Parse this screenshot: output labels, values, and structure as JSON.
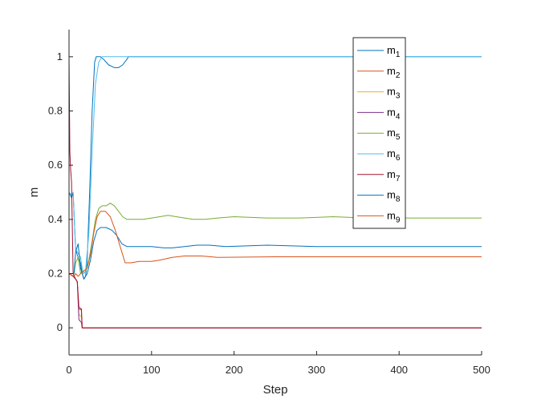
{
  "chart_data": {
    "type": "line",
    "xlabel": "Step",
    "ylabel": "m",
    "xlim": [
      0,
      500
    ],
    "ylim": [
      -0.1,
      1.1
    ],
    "xticks": [
      "0",
      "100",
      "200",
      "300",
      "400",
      "500"
    ],
    "yticks": [
      "0",
      "0.2",
      "0.4",
      "0.6",
      "0.8",
      "1"
    ],
    "grid": false,
    "legend_position": "top-right",
    "series": [
      {
        "name": "m",
        "sub": "1",
        "color": "#0072BD",
        "points": [
          [
            0,
            0.5
          ],
          [
            3,
            0.48
          ],
          [
            5,
            0.5
          ],
          [
            8,
            0.29
          ],
          [
            12,
            0.25
          ],
          [
            14,
            0.24
          ],
          [
            16,
            0.2
          ],
          [
            18,
            0.18
          ],
          [
            20,
            0.19
          ],
          [
            22,
            0.25
          ],
          [
            25,
            0.5
          ],
          [
            28,
            0.8
          ],
          [
            31,
            0.98
          ],
          [
            33,
            1.0
          ],
          [
            38,
            1.0
          ],
          [
            42,
            0.99
          ],
          [
            48,
            0.97
          ],
          [
            55,
            0.96
          ],
          [
            60,
            0.96
          ],
          [
            65,
            0.97
          ],
          [
            70,
            0.99
          ],
          [
            72,
            1.0
          ],
          [
            100,
            1.0
          ],
          [
            200,
            1.0
          ],
          [
            300,
            1.0
          ],
          [
            400,
            1.0
          ],
          [
            500,
            1.0
          ]
        ]
      },
      {
        "name": "m",
        "sub": "2",
        "color": "#D95319",
        "points": [
          [
            0,
            0.2
          ],
          [
            5,
            0.19
          ],
          [
            8,
            0.18
          ],
          [
            10,
            0.17
          ],
          [
            12,
            0.07
          ],
          [
            15,
            0.065
          ],
          [
            16,
            0.0
          ],
          [
            20,
            0.0
          ],
          [
            100,
            0.0
          ],
          [
            200,
            0.0
          ],
          [
            300,
            0.0
          ],
          [
            400,
            0.0
          ],
          [
            500,
            0.0
          ]
        ]
      },
      {
        "name": "m",
        "sub": "3",
        "color": "#EDB120",
        "points": [
          [
            0,
            0.2
          ],
          [
            5,
            0.19
          ],
          [
            8,
            0.18
          ],
          [
            10,
            0.17
          ],
          [
            12,
            0.05
          ],
          [
            15,
            0.04
          ],
          [
            16,
            0.0
          ],
          [
            20,
            0.0
          ],
          [
            100,
            0.0
          ],
          [
            200,
            0.0
          ],
          [
            300,
            0.0
          ],
          [
            400,
            0.0
          ],
          [
            500,
            0.0
          ]
        ]
      },
      {
        "name": "m",
        "sub": "4",
        "color": "#7E2F8E",
        "points": [
          [
            0,
            0.2
          ],
          [
            5,
            0.19
          ],
          [
            8,
            0.18
          ],
          [
            10,
            0.17
          ],
          [
            12,
            0.03
          ],
          [
            15,
            0.02
          ],
          [
            16,
            0.0
          ],
          [
            20,
            0.0
          ],
          [
            100,
            0.0
          ],
          [
            200,
            0.0
          ],
          [
            300,
            0.0
          ],
          [
            400,
            0.0
          ],
          [
            500,
            0.0
          ]
        ]
      },
      {
        "name": "m",
        "sub": "5",
        "color": "#77AC30",
        "points": [
          [
            0,
            0.2
          ],
          [
            6,
            0.2
          ],
          [
            8,
            0.24
          ],
          [
            11,
            0.26
          ],
          [
            14,
            0.2
          ],
          [
            16,
            0.21
          ],
          [
            18,
            0.2
          ],
          [
            20,
            0.21
          ],
          [
            24,
            0.25
          ],
          [
            28,
            0.32
          ],
          [
            32,
            0.4
          ],
          [
            36,
            0.44
          ],
          [
            40,
            0.45
          ],
          [
            45,
            0.45
          ],
          [
            50,
            0.46
          ],
          [
            55,
            0.45
          ],
          [
            60,
            0.43
          ],
          [
            65,
            0.41
          ],
          [
            70,
            0.4
          ],
          [
            80,
            0.4
          ],
          [
            90,
            0.4
          ],
          [
            100,
            0.405
          ],
          [
            110,
            0.41
          ],
          [
            120,
            0.415
          ],
          [
            130,
            0.41
          ],
          [
            140,
            0.405
          ],
          [
            150,
            0.4
          ],
          [
            165,
            0.4
          ],
          [
            180,
            0.405
          ],
          [
            200,
            0.41
          ],
          [
            240,
            0.405
          ],
          [
            280,
            0.405
          ],
          [
            320,
            0.41
          ],
          [
            360,
            0.405
          ],
          [
            400,
            0.405
          ],
          [
            450,
            0.405
          ],
          [
            500,
            0.405
          ]
        ]
      },
      {
        "name": "m",
        "sub": "6",
        "color": "#4DBEEE",
        "points": [
          [
            0,
            0.5
          ],
          [
            3,
            0.49
          ],
          [
            5,
            0.5
          ],
          [
            8,
            0.29
          ],
          [
            12,
            0.27
          ],
          [
            14,
            0.26
          ],
          [
            16,
            0.22
          ],
          [
            18,
            0.2
          ],
          [
            20,
            0.21
          ],
          [
            24,
            0.35
          ],
          [
            28,
            0.65
          ],
          [
            32,
            0.9
          ],
          [
            36,
            0.98
          ],
          [
            40,
            1.0
          ],
          [
            100,
            1.0
          ],
          [
            200,
            1.0
          ],
          [
            300,
            1.0
          ],
          [
            400,
            1.0
          ],
          [
            500,
            1.0
          ]
        ]
      },
      {
        "name": "m",
        "sub": "7",
        "color": "#A2142F",
        "points": [
          [
            0,
            1.0
          ],
          [
            1,
            0.65
          ],
          [
            2,
            0.58
          ],
          [
            3,
            0.54
          ],
          [
            5,
            0.2
          ],
          [
            8,
            0.18
          ],
          [
            10,
            0.17
          ],
          [
            12,
            0.075
          ],
          [
            15,
            0.07
          ],
          [
            16,
            0.0
          ],
          [
            20,
            0.0
          ],
          [
            100,
            0.0
          ],
          [
            200,
            0.0
          ],
          [
            300,
            0.0
          ],
          [
            400,
            0.0
          ],
          [
            500,
            0.0
          ]
        ]
      },
      {
        "name": "m",
        "sub": "8",
        "color": "#0072BD",
        "points": [
          [
            0,
            0.2
          ],
          [
            6,
            0.2
          ],
          [
            8,
            0.28
          ],
          [
            11,
            0.31
          ],
          [
            14,
            0.22
          ],
          [
            18,
            0.18
          ],
          [
            22,
            0.2
          ],
          [
            26,
            0.25
          ],
          [
            30,
            0.32
          ],
          [
            34,
            0.36
          ],
          [
            38,
            0.37
          ],
          [
            45,
            0.37
          ],
          [
            52,
            0.36
          ],
          [
            58,
            0.34
          ],
          [
            64,
            0.31
          ],
          [
            70,
            0.3
          ],
          [
            80,
            0.3
          ],
          [
            100,
            0.3
          ],
          [
            115,
            0.295
          ],
          [
            125,
            0.295
          ],
          [
            140,
            0.3
          ],
          [
            155,
            0.305
          ],
          [
            170,
            0.305
          ],
          [
            190,
            0.3
          ],
          [
            240,
            0.305
          ],
          [
            300,
            0.3
          ],
          [
            400,
            0.3
          ],
          [
            500,
            0.3
          ]
        ]
      },
      {
        "name": "m",
        "sub": "9",
        "color": "#D95319",
        "points": [
          [
            0,
            0.2
          ],
          [
            6,
            0.19
          ],
          [
            8,
            0.2
          ],
          [
            11,
            0.19
          ],
          [
            14,
            0.2
          ],
          [
            18,
            0.21
          ],
          [
            22,
            0.22
          ],
          [
            26,
            0.27
          ],
          [
            30,
            0.35
          ],
          [
            34,
            0.41
          ],
          [
            38,
            0.43
          ],
          [
            44,
            0.43
          ],
          [
            50,
            0.41
          ],
          [
            56,
            0.36
          ],
          [
            62,
            0.3
          ],
          [
            68,
            0.24
          ],
          [
            75,
            0.24
          ],
          [
            85,
            0.245
          ],
          [
            100,
            0.245
          ],
          [
            110,
            0.25
          ],
          [
            125,
            0.26
          ],
          [
            140,
            0.265
          ],
          [
            160,
            0.265
          ],
          [
            180,
            0.26
          ],
          [
            250,
            0.262
          ],
          [
            350,
            0.262
          ],
          [
            420,
            0.262
          ],
          [
            500,
            0.262
          ]
        ]
      }
    ]
  }
}
